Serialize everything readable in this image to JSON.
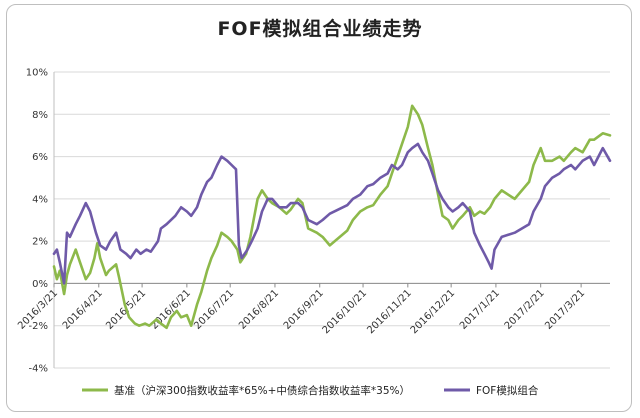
{
  "chart_data": {
    "type": "line",
    "title": "FOF模拟组合业绩走势",
    "ylim": [
      -4,
      10
    ],
    "yticks": [
      "-4%",
      "-2%",
      "0%",
      "2%",
      "4%",
      "6%",
      "8%",
      "10%"
    ],
    "ytick_values": [
      -4,
      -2,
      0,
      2,
      4,
      6,
      8,
      10
    ],
    "x_start": "2016/3/21",
    "x_end": "2017/4/10",
    "xticks": [
      "2016/3/21",
      "2016/4/21",
      "2016/5/21",
      "2016/6/21",
      "2016/7/21",
      "2016/8/21",
      "2016/9/21",
      "2016/10/21",
      "2016/11/21",
      "2016/12/21",
      "2017/1/21",
      "2017/2/21",
      "2017/3/21"
    ],
    "grid": true,
    "legend_position": "bottom",
    "series": [
      {
        "name": "基准（沪深300指数收益率*65%+中债综合指数收益率*35%）",
        "color": "#8db94a",
        "points": [
          [
            "2016/3/21",
            0.8
          ],
          [
            "2016/3/23",
            0.2
          ],
          [
            "2016/3/25",
            0.6
          ],
          [
            "2016/3/28",
            -0.5
          ],
          [
            "2016/3/30",
            0.4
          ],
          [
            "2016/4/1",
            0.9
          ],
          [
            "2016/4/5",
            1.6
          ],
          [
            "2016/4/8",
            1.0
          ],
          [
            "2016/4/12",
            0.2
          ],
          [
            "2016/4/15",
            0.5
          ],
          [
            "2016/4/18",
            1.2
          ],
          [
            "2016/4/20",
            1.9
          ],
          [
            "2016/4/22",
            1.2
          ],
          [
            "2016/4/26",
            0.4
          ],
          [
            "2016/4/28",
            0.6
          ],
          [
            "2016/5/3",
            0.9
          ],
          [
            "2016/5/5",
            0.3
          ],
          [
            "2016/5/9",
            -1.0
          ],
          [
            "2016/5/12",
            -1.6
          ],
          [
            "2016/5/16",
            -1.9
          ],
          [
            "2016/5/19",
            -2.0
          ],
          [
            "2016/5/23",
            -1.9
          ],
          [
            "2016/5/26",
            -2.0
          ],
          [
            "2016/5/31",
            -1.7
          ],
          [
            "2016/6/3",
            -1.9
          ],
          [
            "2016/6/7",
            -2.1
          ],
          [
            "2016/6/10",
            -1.6
          ],
          [
            "2016/6/14",
            -1.3
          ],
          [
            "2016/6/17",
            -1.6
          ],
          [
            "2016/6/21",
            -1.5
          ],
          [
            "2016/6/24",
            -2.0
          ],
          [
            "2016/6/28",
            -1.0
          ],
          [
            "2016/7/1",
            -0.4
          ],
          [
            "2016/7/5",
            0.6
          ],
          [
            "2016/7/8",
            1.2
          ],
          [
            "2016/7/12",
            1.8
          ],
          [
            "2016/7/15",
            2.4
          ],
          [
            "2016/7/19",
            2.2
          ],
          [
            "2016/7/22",
            2.0
          ],
          [
            "2016/7/26",
            1.6
          ],
          [
            "2016/7/28",
            1.0
          ],
          [
            "2016/8/1",
            1.4
          ],
          [
            "2016/8/4",
            2.2
          ],
          [
            "2016/8/9",
            4.0
          ],
          [
            "2016/8/12",
            4.4
          ],
          [
            "2016/8/16",
            4.0
          ],
          [
            "2016/8/19",
            3.8
          ],
          [
            "2016/8/24",
            3.6
          ],
          [
            "2016/8/29",
            3.3
          ],
          [
            "2016/9/1",
            3.5
          ],
          [
            "2016/9/6",
            4.0
          ],
          [
            "2016/9/9",
            3.8
          ],
          [
            "2016/9/13",
            2.6
          ],
          [
            "2016/9/19",
            2.4
          ],
          [
            "2016/9/23",
            2.2
          ],
          [
            "2016/9/28",
            1.8
          ],
          [
            "2016/10/10",
            2.5
          ],
          [
            "2016/10/14",
            3.0
          ],
          [
            "2016/10/19",
            3.4
          ],
          [
            "2016/10/24",
            3.6
          ],
          [
            "2016/10/28",
            3.7
          ],
          [
            "2016/11/2",
            4.2
          ],
          [
            "2016/11/7",
            4.6
          ],
          [
            "2016/11/10",
            5.2
          ],
          [
            "2016/11/14",
            6.0
          ],
          [
            "2016/11/17",
            6.6
          ],
          [
            "2016/11/21",
            7.4
          ],
          [
            "2016/11/24",
            8.4
          ],
          [
            "2016/11/28",
            8.0
          ],
          [
            "2016/12/1",
            7.5
          ],
          [
            "2016/12/5",
            6.4
          ],
          [
            "2016/12/8",
            5.6
          ],
          [
            "2016/12/12",
            4.2
          ],
          [
            "2016/12/15",
            3.2
          ],
          [
            "2016/12/19",
            3.0
          ],
          [
            "2016/12/22",
            2.6
          ],
          [
            "2016/12/26",
            3.0
          ],
          [
            "2016/12/29",
            3.2
          ],
          [
            "2017/1/3",
            3.6
          ],
          [
            "2017/1/6",
            3.2
          ],
          [
            "2017/1/10",
            3.4
          ],
          [
            "2017/1/13",
            3.3
          ],
          [
            "2017/1/17",
            3.6
          ],
          [
            "2017/1/20",
            4.0
          ],
          [
            "2017/1/25",
            4.4
          ],
          [
            "2017/2/3",
            4.0
          ],
          [
            "2017/2/8",
            4.4
          ],
          [
            "2017/2/13",
            4.8
          ],
          [
            "2017/2/16",
            5.6
          ],
          [
            "2017/2/21",
            6.4
          ],
          [
            "2017/2/24",
            5.8
          ],
          [
            "2017/3/1",
            5.8
          ],
          [
            "2017/3/6",
            6.0
          ],
          [
            "2017/3/9",
            5.8
          ],
          [
            "2017/3/14",
            6.2
          ],
          [
            "2017/3/17",
            6.4
          ],
          [
            "2017/3/22",
            6.2
          ],
          [
            "2017/3/27",
            6.8
          ],
          [
            "2017/3/30",
            6.8
          ],
          [
            "2017/4/5",
            7.1
          ],
          [
            "2017/4/10",
            7.0
          ]
        ]
      },
      {
        "name": "FOF模拟组合",
        "color": "#6f5aa8",
        "points": [
          [
            "2016/3/21",
            1.4
          ],
          [
            "2016/3/23",
            1.6
          ],
          [
            "2016/3/25",
            1.0
          ],
          [
            "2016/3/28",
            0.0
          ],
          [
            "2016/3/30",
            2.4
          ],
          [
            "2016/4/1",
            2.2
          ],
          [
            "2016/4/5",
            2.8
          ],
          [
            "2016/4/8",
            3.2
          ],
          [
            "2016/4/12",
            3.8
          ],
          [
            "2016/4/15",
            3.4
          ],
          [
            "2016/4/19",
            2.4
          ],
          [
            "2016/4/22",
            1.8
          ],
          [
            "2016/4/26",
            1.6
          ],
          [
            "2016/4/29",
            2.0
          ],
          [
            "2016/5/3",
            2.4
          ],
          [
            "2016/5/6",
            1.6
          ],
          [
            "2016/5/10",
            1.4
          ],
          [
            "2016/5/13",
            1.2
          ],
          [
            "2016/5/17",
            1.6
          ],
          [
            "2016/5/20",
            1.4
          ],
          [
            "2016/5/24",
            1.6
          ],
          [
            "2016/5/27",
            1.5
          ],
          [
            "2016/6/1",
            2.0
          ],
          [
            "2016/6/3",
            2.6
          ],
          [
            "2016/6/7",
            2.8
          ],
          [
            "2016/6/13",
            3.2
          ],
          [
            "2016/6/17",
            3.6
          ],
          [
            "2016/6/21",
            3.4
          ],
          [
            "2016/6/24",
            3.2
          ],
          [
            "2016/6/28",
            3.6
          ],
          [
            "2016/7/1",
            4.2
          ],
          [
            "2016/7/5",
            4.8
          ],
          [
            "2016/7/8",
            5.0
          ],
          [
            "2016/7/12",
            5.6
          ],
          [
            "2016/7/15",
            6.0
          ],
          [
            "2016/7/19",
            5.8
          ],
          [
            "2016/7/22",
            5.6
          ],
          [
            "2016/7/25",
            5.4
          ],
          [
            "2016/7/27",
            1.8
          ],
          [
            "2016/7/29",
            1.2
          ],
          [
            "2016/8/2",
            1.6
          ],
          [
            "2016/8/5",
            2.0
          ],
          [
            "2016/8/9",
            2.6
          ],
          [
            "2016/8/12",
            3.4
          ],
          [
            "2016/8/16",
            4.0
          ],
          [
            "2016/8/19",
            4.0
          ],
          [
            "2016/8/24",
            3.6
          ],
          [
            "2016/8/29",
            3.6
          ],
          [
            "2016/9/1",
            3.8
          ],
          [
            "2016/9/6",
            3.8
          ],
          [
            "2016/9/9",
            3.6
          ],
          [
            "2016/9/13",
            3.0
          ],
          [
            "2016/9/19",
            2.8
          ],
          [
            "2016/9/23",
            3.0
          ],
          [
            "2016/9/28",
            3.3
          ],
          [
            "2016/10/10",
            3.7
          ],
          [
            "2016/10/14",
            4.0
          ],
          [
            "2016/10/19",
            4.2
          ],
          [
            "2016/10/24",
            4.6
          ],
          [
            "2016/10/28",
            4.7
          ],
          [
            "2016/11/2",
            5.0
          ],
          [
            "2016/11/7",
            5.2
          ],
          [
            "2016/11/10",
            5.6
          ],
          [
            "2016/11/14",
            5.4
          ],
          [
            "2016/11/17",
            5.6
          ],
          [
            "2016/11/21",
            6.2
          ],
          [
            "2016/11/24",
            6.4
          ],
          [
            "2016/11/28",
            6.6
          ],
          [
            "2016/12/1",
            6.2
          ],
          [
            "2016/12/5",
            5.8
          ],
          [
            "2016/12/8",
            5.2
          ],
          [
            "2016/12/12",
            4.4
          ],
          [
            "2016/12/15",
            4.0
          ],
          [
            "2016/12/19",
            3.6
          ],
          [
            "2016/12/22",
            3.4
          ],
          [
            "2016/12/26",
            3.6
          ],
          [
            "2016/12/29",
            3.8
          ],
          [
            "2017/1/3",
            3.4
          ],
          [
            "2017/1/6",
            2.4
          ],
          [
            "2017/1/10",
            1.8
          ],
          [
            "2017/1/13",
            1.4
          ],
          [
            "2017/1/16",
            1.0
          ],
          [
            "2017/1/18",
            0.7
          ],
          [
            "2017/1/20",
            1.6
          ],
          [
            "2017/1/25",
            2.2
          ],
          [
            "2017/2/3",
            2.4
          ],
          [
            "2017/2/8",
            2.6
          ],
          [
            "2017/2/13",
            2.8
          ],
          [
            "2017/2/16",
            3.4
          ],
          [
            "2017/2/21",
            4.0
          ],
          [
            "2017/2/24",
            4.6
          ],
          [
            "2017/3/1",
            5.0
          ],
          [
            "2017/3/6",
            5.2
          ],
          [
            "2017/3/9",
            5.4
          ],
          [
            "2017/3/14",
            5.6
          ],
          [
            "2017/3/17",
            5.4
          ],
          [
            "2017/3/22",
            5.8
          ],
          [
            "2017/3/27",
            6.0
          ],
          [
            "2017/3/30",
            5.6
          ],
          [
            "2017/4/5",
            6.4
          ],
          [
            "2017/4/10",
            5.8
          ]
        ]
      }
    ]
  }
}
